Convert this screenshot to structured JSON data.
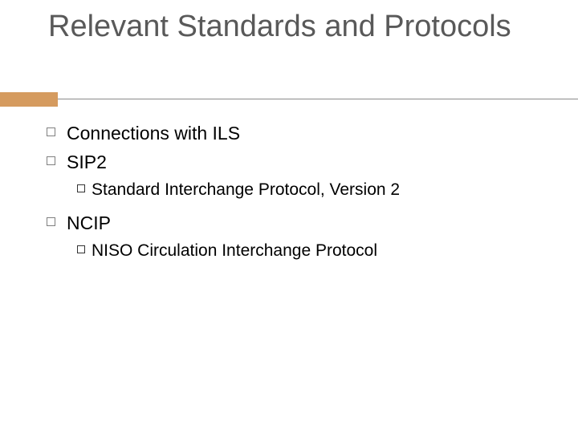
{
  "slide": {
    "title": "Relevant Standards and Protocols",
    "accent_color": "#d59b5f",
    "underline_color": "#8a8a8a",
    "title_color": "#595959",
    "text_color": "#000000",
    "title_fontsize": 38,
    "body_fontsize": 23,
    "sub_fontsize": 21,
    "bullets": {
      "b1": "Connections with ILS",
      "b2": "SIP2",
      "b2_sub": "Standard Interchange Protocol, Version 2",
      "b3": "NCIP",
      "b3_sub": "NISO Circulation Interchange Protocol"
    }
  }
}
